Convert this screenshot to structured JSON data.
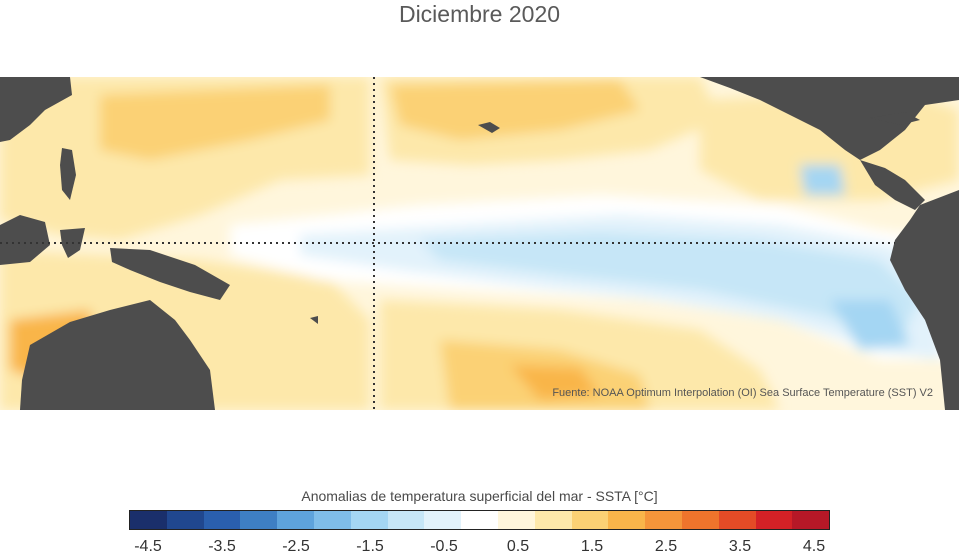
{
  "title": "Diciembre 2020",
  "source": "Fuente: NOAA Optimum Interpolation (OI) Sea Surface Temperature (SST) V2",
  "colorbar": {
    "title": "Anomalias de temperatura superficial del mar - SSTA  [°C]",
    "colors": [
      "#1a2f6b",
      "#20478f",
      "#2a5fae",
      "#3e7fc4",
      "#5ea3dc",
      "#7fbde9",
      "#a4d6f3",
      "#c6e6f7",
      "#e2f2fb",
      "#ffffff",
      "#fff6dc",
      "#fde8aa",
      "#fbd174",
      "#f9b54a",
      "#f5953a",
      "#ef742c",
      "#e44b26",
      "#d42126",
      "#b61827"
    ],
    "tick_labels": [
      "-4.5",
      "-3.5",
      "-2.5",
      "-1.5",
      "-0.5",
      "0.5",
      "1.5",
      "2.5",
      "3.5",
      "4.5"
    ]
  },
  "map": {
    "land_color": "#4d4d4d",
    "warm_light": "#fde8aa",
    "warm_mid": "#fbd174",
    "warm_strong": "#f9b54a",
    "warm_hot": "#f5953a",
    "cool_light": "#e2f2fb",
    "cool_mid": "#c6e6f7",
    "cool_strong": "#a4d6f3",
    "reference_lines": "dotted"
  }
}
